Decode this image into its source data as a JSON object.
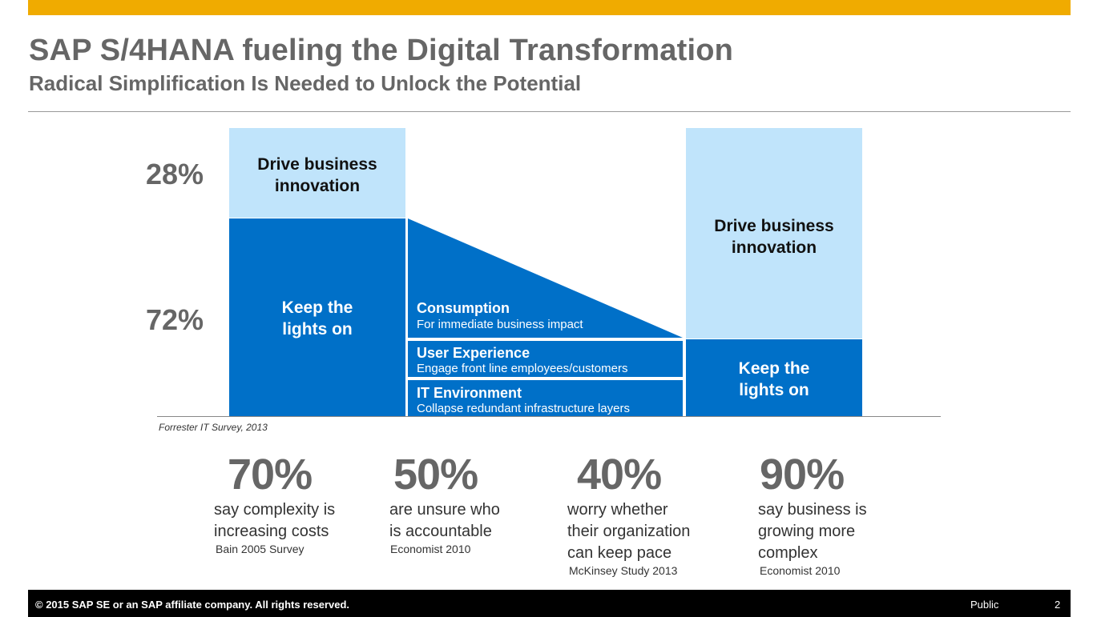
{
  "slide": {
    "title": "SAP S/4HANA fueling the Digital Transformation",
    "subtitle": "Radical Simplification Is Needed to Unlock the Potential",
    "accent_color": "#F0AB00"
  },
  "diagram": {
    "left_pct_top": "28%",
    "left_pct_bottom": "72%",
    "left_bar": {
      "top_label": "Drive business innovation",
      "bottom_label": "Keep the lights on"
    },
    "middle": [
      {
        "title": "Consumption",
        "subtitle": "For immediate business impact"
      },
      {
        "title": "User Experience",
        "subtitle": "Engage front line employees/customers"
      },
      {
        "title": "IT Environment",
        "subtitle": "Collapse redundant infrastructure layers"
      }
    ],
    "right_bar": {
      "top_label": "Drive business innovation",
      "bottom_label": "Keep the lights on"
    },
    "source": "Forrester IT Survey, 2013",
    "colors": {
      "light": "#C0E4FB",
      "dark": "#0070C8"
    }
  },
  "stats": [
    {
      "value": "70%",
      "text": "say complexity is increasing costs",
      "source": "Bain 2005 Survey"
    },
    {
      "value": "50%",
      "text": "are unsure who is accountable",
      "source": "Economist 2010"
    },
    {
      "value": "40%",
      "text": "worry whether their organization can keep pace",
      "source": "McKinsey Study 2013"
    },
    {
      "value": "90%",
      "text": "say business is growing more complex",
      "source": "Economist 2010"
    }
  ],
  "footer": {
    "copyright": "© 2015 SAP SE or an SAP affiliate company. All rights reserved.",
    "classification": "Public",
    "page": "2"
  }
}
